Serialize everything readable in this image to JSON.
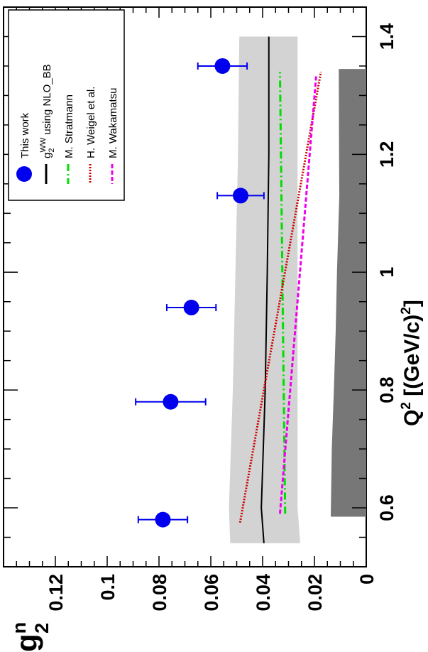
{
  "chart_data": {
    "type": "scatter",
    "orientation": "rotated-90-clockwise",
    "xlabel": {
      "base": "Q",
      "sup1": "2",
      "rest": " [(GeV/c)",
      "sup2": "2",
      "close": "]"
    },
    "ylabel": {
      "base": "g",
      "sup": "n",
      "sub": "2"
    },
    "xlim": [
      0.5,
      1.45
    ],
    "ylim": [
      0,
      0.14
    ],
    "x_ticks": [
      "0.6",
      "0.8",
      "1",
      "1.2",
      "1.4"
    ],
    "y_ticks": [
      "0",
      "0.02",
      "0.04",
      "0.06",
      "0.08",
      "0.1",
      "0.12"
    ],
    "series": [
      {
        "name": "This work",
        "kind": "points",
        "color": "#0000ee",
        "points": [
          {
            "x": 0.58,
            "y": 0.0785,
            "err": 0.0095
          },
          {
            "x": 0.78,
            "y": 0.0755,
            "err": 0.0135
          },
          {
            "x": 0.94,
            "y": 0.0675,
            "err": 0.0095
          },
          {
            "x": 1.13,
            "y": 0.0485,
            "err": 0.009
          },
          {
            "x": 1.35,
            "y": 0.0555,
            "err": 0.0095
          }
        ]
      },
      {
        "name": "g2WW using NLO_BB",
        "kind": "line",
        "color": "#000000",
        "dash": "",
        "x": [
          0.54,
          0.6,
          0.8,
          1.0,
          1.2,
          1.4
        ],
        "y": [
          0.0395,
          0.0405,
          0.039,
          0.0382,
          0.0376,
          0.0376
        ]
      },
      {
        "name": "M. Stratmann",
        "kind": "line",
        "color": "#00dd00",
        "dash": "10 4 2 4",
        "x": [
          0.59,
          1.34
        ],
        "y": [
          0.0313,
          0.0333
        ]
      },
      {
        "name": "H. Weigel et al.",
        "kind": "line",
        "color": "#cc0000",
        "dash": "2 2",
        "x": [
          0.575,
          1.34
        ],
        "y": [
          0.0487,
          0.0175
        ]
      },
      {
        "name": "M. Wakamatsu",
        "kind": "line",
        "color": "#ee00ee",
        "dash": "6 3",
        "x": [
          0.59,
          1.335
        ],
        "y": [
          0.0333,
          0.0193
        ]
      }
    ],
    "error_band": {
      "color": "#d3d3d3",
      "x": [
        0.54,
        0.6,
        0.8,
        1.0,
        1.2,
        1.4
      ],
      "upper": [
        0.0525,
        0.053,
        0.0515,
        0.0505,
        0.0495,
        0.049
      ],
      "lower": [
        0.0255,
        0.0265,
        0.0265,
        0.0265,
        0.0265,
        0.0265
      ]
    },
    "systematic_band": {
      "color": "#777777",
      "x": [
        0.585,
        0.7,
        0.8,
        0.9,
        1.0,
        1.13,
        1.2,
        1.345
      ],
      "upper": [
        0.0137,
        0.0133,
        0.0125,
        0.0118,
        0.0113,
        0.0104,
        0.0105,
        0.0106
      ],
      "lower": [
        0,
        0,
        0,
        0,
        0,
        0,
        0,
        0
      ]
    },
    "legend": {
      "placement": "top-left",
      "entries": [
        {
          "label": "This work",
          "marker": "dot",
          "color": "#0000ee"
        },
        {
          "label_base": "g",
          "label_sub": "2",
          "label_sup": "WW",
          "label_rest": " using NLO_BB",
          "marker": "line",
          "color": "#000000",
          "dash": ""
        },
        {
          "label": "M. Stratmann",
          "marker": "line",
          "color": "#00dd00",
          "dash": "10 4 2 4"
        },
        {
          "label": "H. Weigel et al.",
          "marker": "line",
          "color": "#cc0000",
          "dash": "2 2"
        },
        {
          "label": "M. Wakamatsu",
          "marker": "line",
          "color": "#ee00ee",
          "dash": "6 3"
        }
      ]
    }
  }
}
